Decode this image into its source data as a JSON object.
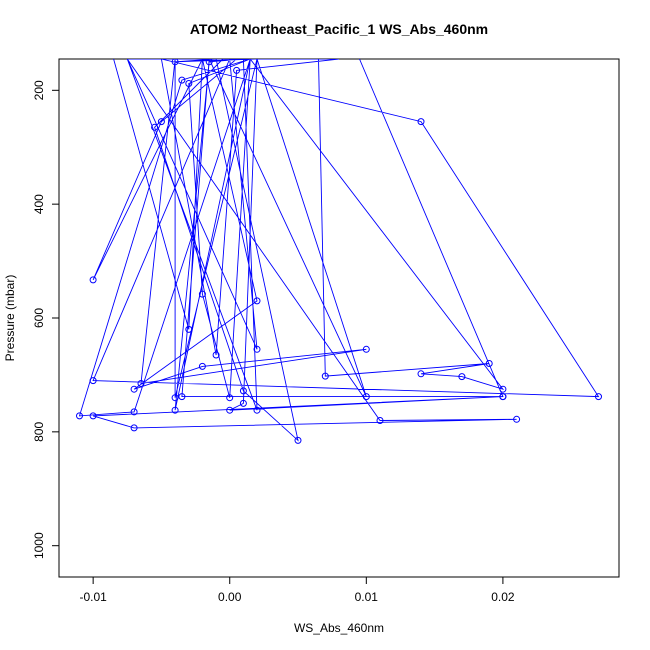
{
  "chart_data": {
    "type": "line",
    "title": "ATOM2 Northeast_Pacific_1 WS_Abs_460nm",
    "xlabel": "WS_Abs_460nm",
    "ylabel": "Pressure (mbar)",
    "xlim": [
      -0.0125,
      0.0285
    ],
    "ylim": [
      1055,
      145
    ],
    "y_reversed": true,
    "x_ticks": [
      -0.01,
      0.0,
      0.01,
      0.02
    ],
    "x_tick_labels": [
      "-0.01",
      "0.00",
      "0.01",
      "0.02"
    ],
    "y_ticks": [
      200,
      400,
      600,
      800,
      1000
    ],
    "y_tick_labels": [
      "200",
      "400",
      "600",
      "800",
      "1000"
    ],
    "grid": false,
    "legend": "none",
    "series_color": "#0000ff",
    "marker": "open-circle",
    "series": [
      {
        "x": [
          -0.0085,
          -0.003,
          -0.002,
          0.0,
          0.0065,
          0.008,
          0.0005,
          -0.001,
          -0.005,
          0.014,
          0.027,
          -0.01,
          0.0,
          0.002,
          -0.0075,
          0.0005,
          -0.005,
          -0.01,
          -0.002,
          0.002,
          -0.007,
          -0.002,
          0.01,
          -0.0065,
          -0.004,
          -0.004,
          0.002,
          0.0,
          -0.0055,
          0.003,
          -0.0005,
          -0.0055,
          0.001,
          0.005,
          -0.001,
          -0.004,
          0.002,
          0.001,
          0.0,
          0.02,
          -0.0035,
          -0.0015,
          0.01,
          0.002,
          0.0065,
          0.007,
          0.019,
          0.014,
          0.017,
          0.02,
          0.0015,
          -0.007,
          -0.011,
          -0.0035,
          0.0015,
          -0.003,
          -0.002,
          0.0,
          0.0015,
          -0.004,
          -0.0015,
          0.001,
          0.002,
          -0.0075,
          0.011,
          0.021,
          -0.007,
          -0.01,
          0.02,
          0.0095
        ],
        "y": [
          145,
          620,
          145,
          145,
          145,
          145,
          165,
          665,
          145,
          255,
          738,
          710,
          145,
          655,
          145,
          145,
          255,
          533,
          145,
          570,
          725,
          685,
          655,
          715,
          145,
          740,
          145,
          145,
          145,
          145,
          145,
          265,
          728,
          815,
          145,
          150,
          145,
          750,
          762,
          738,
          738,
          145,
          738,
          145,
          145,
          702,
          680,
          698,
          703,
          725,
          145,
          765,
          772,
          182,
          145,
          188,
          558,
          740,
          145,
          762,
          150,
          145,
          762,
          145,
          780,
          778,
          793,
          772,
          738,
          145
        ]
      }
    ]
  }
}
